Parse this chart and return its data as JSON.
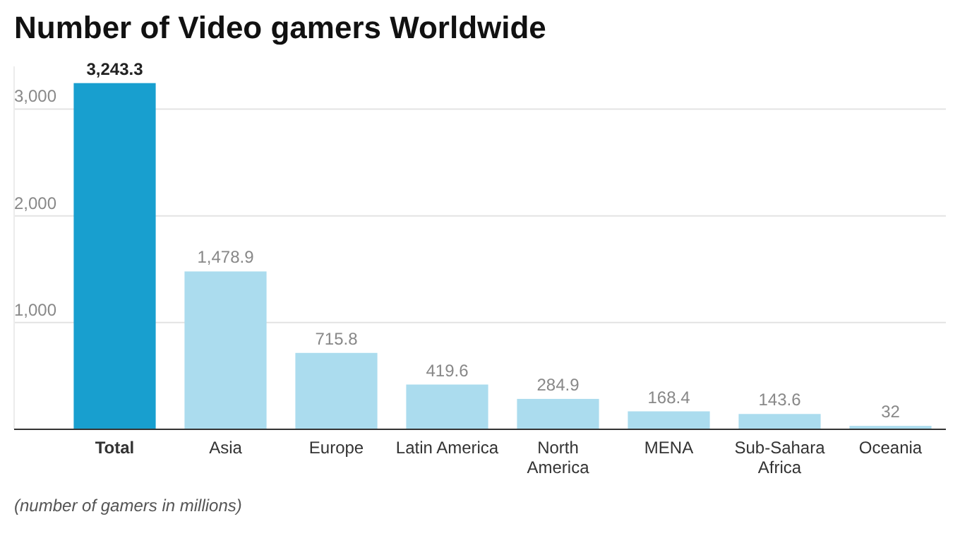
{
  "chart_data": {
    "type": "bar",
    "title": "Number of Video gamers Worldwide",
    "categories": [
      "Total",
      "Asia",
      "Europe",
      "Latin America",
      "North\nAmerica",
      "MENA",
      "Sub-Sahara\nAfrica",
      "Oceania"
    ],
    "values": [
      3243.3,
      1478.9,
      715.8,
      419.6,
      284.9,
      168.4,
      143.6,
      32
    ],
    "colors": [
      "#189fcf",
      "#abdcee",
      "#abdcee",
      "#abdcee",
      "#abdcee",
      "#abdcee",
      "#abdcee",
      "#abdcee"
    ],
    "ylim": [
      0,
      3400
    ],
    "yticks": [
      {
        "value": 1000,
        "label": "1,000"
      },
      {
        "value": 2000,
        "label": "2,000"
      },
      {
        "value": 3000,
        "label": "3,000"
      }
    ],
    "grid": "y",
    "value_labels": [
      "3,243.3",
      "1,478.9",
      "715.8",
      "419.6",
      "284.9",
      "168.4",
      "143.6",
      "32"
    ],
    "annotations": [
      "(number of gamers in millions)"
    ]
  }
}
